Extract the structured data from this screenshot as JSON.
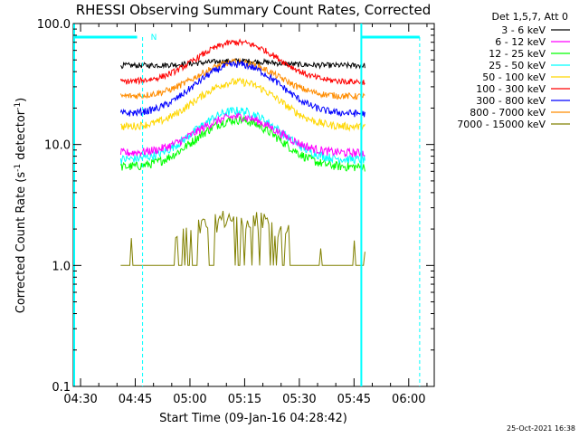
{
  "chart_data": {
    "type": "line",
    "title": "RHESSI Observing Summary Count Rates, Corrected",
    "xlabel": "Start Time (09-Jan-16 04:28:42)",
    "ylabel_prefix": "Corrected Count Rate (s",
    "ylabel_sup": "-1",
    "ylabel_suffix": " detector",
    "ylabel_end": ")",
    "y_scale": "log",
    "ylim": [
      0.1,
      100.0
    ],
    "y_ticks": [
      {
        "value": 100.0,
        "label": "100.0"
      },
      {
        "value": 10.0,
        "label": "10.0"
      },
      {
        "value": 1.0,
        "label": "1.0"
      },
      {
        "value": 0.1,
        "label": "0.1"
      }
    ],
    "xlim_minutes_after_0428": [
      0,
      99
    ],
    "x_ticks": [
      {
        "value": "04:30",
        "label": "04:30"
      },
      {
        "value": "04:45",
        "label": "04:45"
      },
      {
        "value": "05:00",
        "label": "05:00"
      },
      {
        "value": "05:15",
        "label": "05:15"
      },
      {
        "value": "05:30",
        "label": "05:30"
      },
      {
        "value": "05:45",
        "label": "05:45"
      },
      {
        "value": "06:00",
        "label": "06:00"
      }
    ],
    "legend_header": "Det 1,5,7, Att 0",
    "legend_placement": "right",
    "series": [
      {
        "name": "3 - 6 keV",
        "color": "#000000",
        "baseline": 45,
        "peak": 49
      },
      {
        "name": "6 - 12 keV",
        "color": "#ff00ff",
        "baseline": 8.5,
        "peak": 17
      },
      {
        "name": "12 - 25 keV",
        "color": "#00ff00",
        "baseline": 6.5,
        "peak": 16
      },
      {
        "name": "25 - 50 keV",
        "color": "#00ffff",
        "baseline": 7.5,
        "peak": 19
      },
      {
        "name": "50 - 100 keV",
        "color": "#ffd700",
        "baseline": 14,
        "peak": 33
      },
      {
        "name": "100 - 300 keV",
        "color": "#ff0000",
        "baseline": 33,
        "peak": 70
      },
      {
        "name": "300 - 800 keV",
        "color": "#0000ff",
        "baseline": 18,
        "peak": 46
      },
      {
        "name": "800 - 7000 keV",
        "color": "#ff8c00",
        "baseline": 25,
        "peak": 48
      },
      {
        "name": "7000 - 15000 keV",
        "color": "#808000",
        "baseline": 1.0,
        "peak": 3.0
      }
    ],
    "data_start_time": "04:41",
    "data_end_time": "05:48",
    "peak_time": "05:13",
    "night_indicator": {
      "label": "N",
      "start_time": "04:28",
      "end_time": "04:47",
      "color": "#00ffff"
    },
    "day_indicator": {
      "start_time": "05:47",
      "end_time": "06:03",
      "color": "#00ffff"
    },
    "grid": false
  },
  "timestamp": "25-Oct-2021 16:38"
}
